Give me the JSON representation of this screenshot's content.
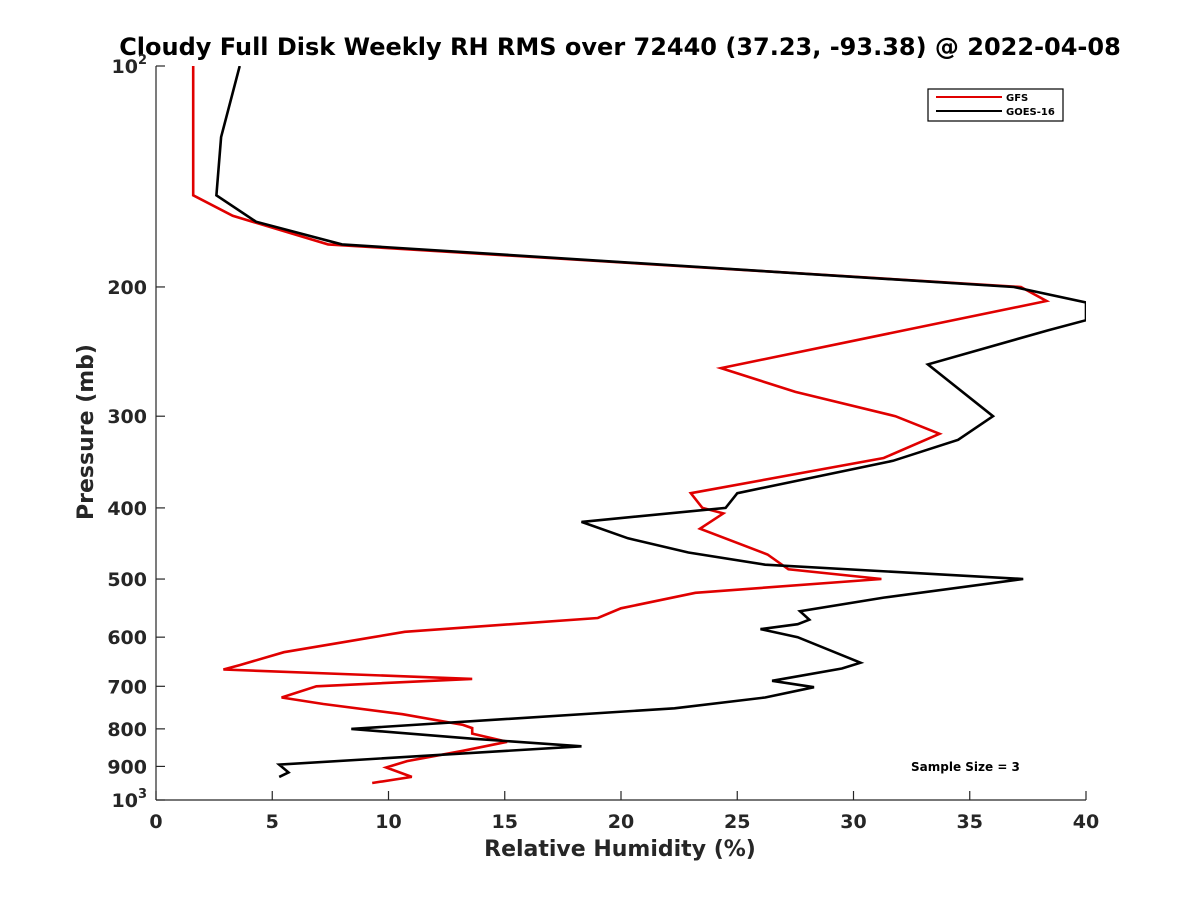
{
  "chart_data": {
    "type": "line",
    "title": "Cloudy Full Disk Weekly RH RMS over 72440 (37.23, -93.38) @ 2022-04-08",
    "xlabel": "Relative Humidity (%)",
    "ylabel": "Pressure (mb)",
    "xlim": [
      0,
      40
    ],
    "ylim": [
      100,
      1000
    ],
    "yscale": "log",
    "y_reversed": true,
    "grid": false,
    "legend_position": "top-right",
    "x_ticks": [
      "0",
      "5",
      "10",
      "15",
      "20",
      "25",
      "30",
      "35",
      "40"
    ],
    "y_ticks": [
      {
        "value": 100,
        "base": "10",
        "exp": "2"
      },
      {
        "value": 200,
        "label": "200"
      },
      {
        "value": 300,
        "label": "300"
      },
      {
        "value": 400,
        "label": "400"
      },
      {
        "value": 500,
        "label": "500"
      },
      {
        "value": 600,
        "label": "600"
      },
      {
        "value": 700,
        "label": "700"
      },
      {
        "value": 800,
        "label": "800"
      },
      {
        "value": 900,
        "label": "900"
      },
      {
        "value": 1000,
        "base": "10",
        "exp": "3"
      }
    ],
    "annotation": "Sample Size = 3",
    "series": [
      {
        "name": "GFS",
        "color": "#e00000",
        "points": [
          [
            1.6,
            100
          ],
          [
            1.6,
            150
          ],
          [
            3.3,
            160
          ],
          [
            7.4,
            175
          ],
          [
            37.2,
            200
          ],
          [
            38.3,
            209
          ],
          [
            24.3,
            258
          ],
          [
            27.5,
            278
          ],
          [
            31.8,
            300
          ],
          [
            33.7,
            317
          ],
          [
            31.3,
            342
          ],
          [
            23.0,
            382
          ],
          [
            23.5,
            400
          ],
          [
            24.4,
            407
          ],
          [
            23.4,
            427
          ],
          [
            26.3,
            463
          ],
          [
            27.2,
            485
          ],
          [
            31.2,
            500
          ],
          [
            23.2,
            522
          ],
          [
            20.0,
            548
          ],
          [
            19.0,
            565
          ],
          [
            10.7,
            590
          ],
          [
            5.5,
            629
          ],
          [
            3.6,
            655
          ],
          [
            2.9,
            664
          ],
          [
            13.6,
            684
          ],
          [
            6.9,
            700
          ],
          [
            5.4,
            725
          ],
          [
            7.2,
            740
          ],
          [
            10.6,
            764
          ],
          [
            13.2,
            790
          ],
          [
            13.6,
            798
          ],
          [
            13.6,
            812
          ],
          [
            15.1,
            833
          ],
          [
            13.2,
            857
          ],
          [
            10.8,
            885
          ],
          [
            9.9,
            903
          ],
          [
            11.0,
            930
          ],
          [
            9.3,
            948
          ]
        ]
      },
      {
        "name": "GOES-16",
        "color": "#000000",
        "points": [
          [
            3.6,
            100
          ],
          [
            2.8,
            125
          ],
          [
            2.6,
            150
          ],
          [
            4.3,
            163
          ],
          [
            8.0,
            175
          ],
          [
            36.9,
            200
          ],
          [
            40.0,
            210
          ],
          [
            40.0,
            222
          ],
          [
            38.4,
            229
          ],
          [
            33.2,
            255
          ],
          [
            36.0,
            300
          ],
          [
            34.5,
            323
          ],
          [
            31.7,
            345
          ],
          [
            25.0,
            382
          ],
          [
            24.5,
            400
          ],
          [
            18.3,
            418
          ],
          [
            20.3,
            440
          ],
          [
            22.9,
            460
          ],
          [
            26.2,
            478
          ],
          [
            37.3,
            500
          ],
          [
            31.3,
            530
          ],
          [
            27.7,
            553
          ],
          [
            28.1,
            568
          ],
          [
            27.6,
            576
          ],
          [
            26.0,
            585
          ],
          [
            27.6,
            600
          ],
          [
            30.3,
            650
          ],
          [
            29.5,
            662
          ],
          [
            26.5,
            688
          ],
          [
            28.3,
            702
          ],
          [
            26.2,
            725
          ],
          [
            22.3,
            750
          ],
          [
            8.4,
            800
          ],
          [
            13.6,
            825
          ],
          [
            18.3,
            845
          ],
          [
            5.3,
            895
          ],
          [
            5.7,
            917
          ],
          [
            5.3,
            930
          ]
        ]
      }
    ]
  }
}
